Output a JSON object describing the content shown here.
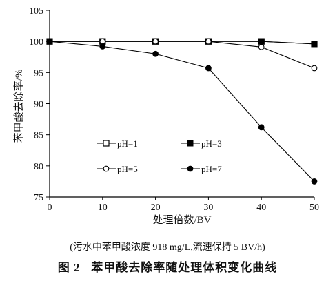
{
  "chart_data": {
    "type": "line",
    "x": [
      0,
      10,
      20,
      30,
      40,
      50
    ],
    "xlim": [
      0,
      50
    ],
    "ylim": [
      75,
      105
    ],
    "xticks": [
      "0",
      "10",
      "20",
      "30",
      "40",
      "50"
    ],
    "yticks": [
      "75",
      "80",
      "85",
      "90",
      "95",
      "100",
      "105"
    ],
    "xlabel": "处理倍数/BV",
    "ylabel": "苯甲酸去除率/%",
    "grid": false,
    "legend_position": "inside-lower-left",
    "series": [
      {
        "name": "pH=1",
        "marker": "open-square",
        "values": [
          100,
          100,
          100,
          100,
          100,
          99.6
        ]
      },
      {
        "name": "pH=3",
        "marker": "filled-square",
        "values": [
          100,
          100,
          100,
          100,
          100,
          99.6
        ]
      },
      {
        "name": "pH=5",
        "marker": "open-circle",
        "values": [
          100,
          100,
          100,
          100,
          99.1,
          95.7
        ]
      },
      {
        "name": "pH=7",
        "marker": "filled-circle",
        "values": [
          100,
          99.2,
          98,
          95.7,
          86.2,
          77.5
        ]
      }
    ]
  },
  "note": "(污水中苯甲酸浓度 918 mg/L,流速保持 5 BV/h)",
  "caption": "图 2   苯甲酸去除率随处理体积变化曲线"
}
